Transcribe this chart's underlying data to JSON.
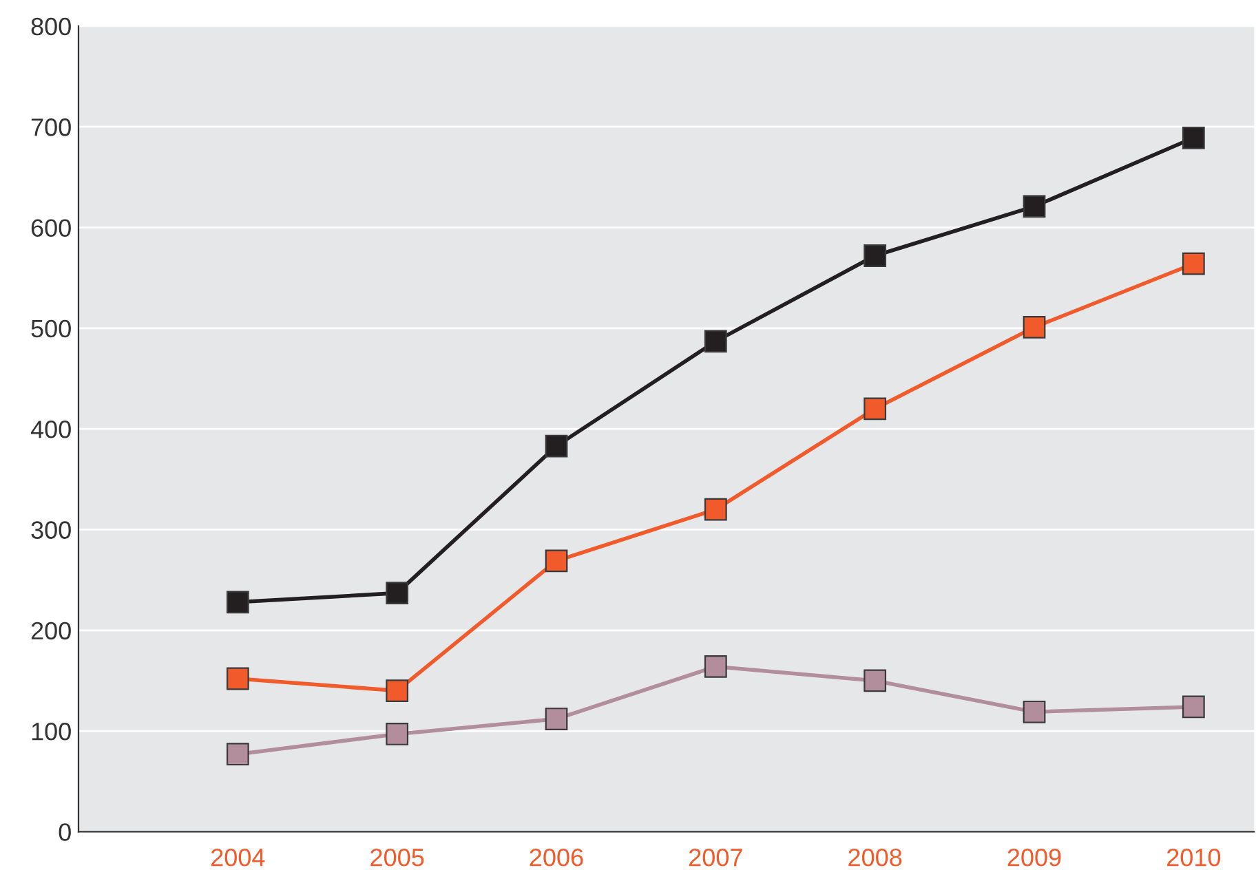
{
  "chart_data": {
    "type": "line",
    "categories": [
      "2004",
      "2005",
      "2006",
      "2007",
      "2008",
      "2009",
      "2010"
    ],
    "series": [
      {
        "color": "#231f20",
        "values": [
          228,
          237,
          383,
          487,
          572,
          621,
          689
        ]
      },
      {
        "color": "#f15a2b",
        "values": [
          152,
          140,
          269,
          320,
          420,
          501,
          564
        ]
      },
      {
        "color": "#b28e9c",
        "values": [
          77,
          97,
          112,
          164,
          150,
          119,
          124
        ]
      }
    ],
    "ylim": [
      0,
      800
    ],
    "yticks": [
      0,
      100,
      200,
      300,
      400,
      500,
      600,
      700,
      800
    ],
    "grid": "y",
    "marker": "square",
    "line_style": "solid",
    "legend": false
  }
}
